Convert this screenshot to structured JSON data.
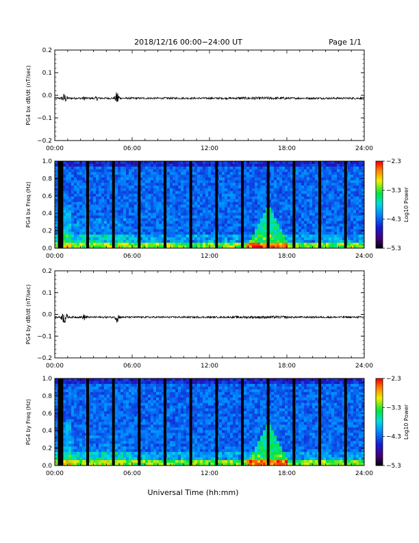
{
  "header": {
    "title": "2018/12/16  00:00−24:00 UT",
    "page": "Page 1/1"
  },
  "footer": {
    "xlabel": "Universal Time (hh:mm)"
  },
  "colors": {
    "background": "#ffffff",
    "trace": "#000000",
    "spectrogram_base": "#1a3fd8"
  },
  "chart_data": [
    {
      "type": "line",
      "ylabel": "PG4 bx dB/dt (nT/sec)",
      "xlim": [
        "00:00",
        "24:00"
      ],
      "ylim": [
        -0.2,
        0.2
      ],
      "y_ticks": [
        "0.2",
        "0.1",
        "0.0",
        "−0.1",
        "−0.2"
      ],
      "x_ticks": [
        "00:00",
        "06:00",
        "12:00",
        "18:00",
        "24:00"
      ],
      "series_summary": "dB/dt trace near 0.0 with bursts around 00:45 and 04:50"
    },
    {
      "type": "heatmap",
      "ylabel": "PG4 bx Freq (Hz)",
      "xlim": [
        "00:00",
        "24:00"
      ],
      "ylim": [
        0.0,
        1.0
      ],
      "y_ticks": [
        "1.0",
        "0.8",
        "0.6",
        "0.4",
        "0.2",
        "0.0"
      ],
      "x_ticks": [
        "00:00",
        "06:00",
        "12:00",
        "18:00",
        "24:00"
      ],
      "colorbar": {
        "label": "Log10 Power",
        "ticks": [
          "−2.3",
          "−3.3",
          "−4.3",
          "−5.3"
        ],
        "range": [
          -5.3,
          -2.3
        ]
      },
      "gap_columns_hours": [
        0.35,
        0.55,
        2.55,
        4.55,
        6.55,
        8.55,
        10.55,
        12.55,
        14.55,
        16.55,
        18.55,
        20.55,
        22.55
      ]
    },
    {
      "type": "line",
      "ylabel": "PG4 by dB/dt (nT/sec)",
      "xlim": [
        "00:00",
        "24:00"
      ],
      "ylim": [
        -0.2,
        0.2
      ],
      "y_ticks": [
        "0.2",
        "0.1",
        "0.0",
        "−0.1",
        "−0.2"
      ],
      "x_ticks": [
        "00:00",
        "06:00",
        "12:00",
        "18:00",
        "24:00"
      ],
      "series_summary": "dB/dt trace near 0.0 with bursts around 00:45, 02:20 and 04:50"
    },
    {
      "type": "heatmap",
      "ylabel": "PG4 by Freq (Hz)",
      "xlim": [
        "00:00",
        "24:00"
      ],
      "ylim": [
        0.0,
        1.0
      ],
      "y_ticks": [
        "1.0",
        "0.8",
        "0.6",
        "0.4",
        "0.2",
        "0.0"
      ],
      "x_ticks": [
        "00:00",
        "06:00",
        "12:00",
        "18:00",
        "24:00"
      ],
      "colorbar": {
        "label": "Log10 Power",
        "ticks": [
          "−2.3",
          "−3.3",
          "−4.3",
          "−5.3"
        ],
        "range": [
          -5.3,
          -2.3
        ]
      },
      "gap_columns_hours": [
        0.35,
        0.55,
        2.55,
        4.55,
        6.55,
        8.55,
        10.55,
        12.55,
        14.55,
        16.55,
        18.55,
        20.55,
        22.55
      ]
    }
  ]
}
